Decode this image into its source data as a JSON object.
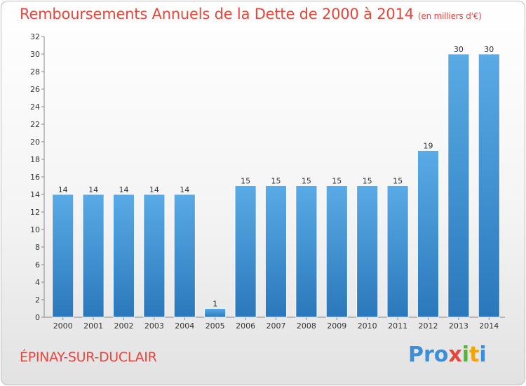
{
  "header": {
    "title": "Remboursements Annuels de la Dette de 2000 à 2014",
    "unit": "(en milliers d'€)"
  },
  "footer": {
    "commune": "ÉPINAY-SUR-DUCLAIR",
    "logo": [
      "Pro",
      "x",
      "i",
      "t",
      "i"
    ]
  },
  "colors": {
    "bar_top": "#5aaae6",
    "bar_bottom": "#2a78bb",
    "title": "#e8463b"
  },
  "chart_data": {
    "type": "bar",
    "title": "Remboursements Annuels de la Dette de 2000 à 2014",
    "ylabel": "(en milliers d'€)",
    "xlabel": "",
    "categories": [
      "2000",
      "2001",
      "2002",
      "2003",
      "2004",
      "2005",
      "2006",
      "2007",
      "2008",
      "2009",
      "2010",
      "2011",
      "2012",
      "2013",
      "2014"
    ],
    "values": [
      14,
      14,
      14,
      14,
      14,
      1,
      15,
      15,
      15,
      15,
      15,
      15,
      19,
      30,
      30
    ],
    "data_labels": [
      "14",
      "14",
      "14",
      "14",
      "14",
      "1",
      "15",
      "15",
      "15",
      "15",
      "15",
      "15",
      "19",
      "30",
      "30"
    ],
    "ylim": [
      0,
      32
    ],
    "yticks": [
      0,
      2,
      4,
      6,
      8,
      10,
      12,
      14,
      16,
      18,
      20,
      22,
      24,
      26,
      28,
      30,
      32
    ],
    "grid": false
  }
}
